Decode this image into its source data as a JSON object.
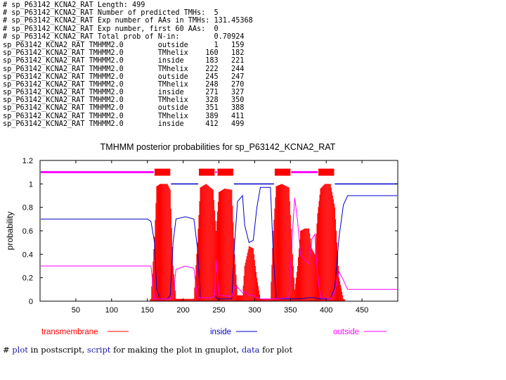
{
  "summary": {
    "header_lines": [
      "# sp_P63142_KCNA2_RAT Length: 499",
      "# sp_P63142_KCNA2_RAT Number of predicted TMHs:  5",
      "# sp_P63142_KCNA2_RAT Exp number of AAs in TMHs: 131.45368",
      "# sp_P63142_KCNA2_RAT Exp number, first 60 AAs:  0",
      "# sp_P63142_KCNA2_RAT Total prob of N-in:        0.70924"
    ],
    "rows": [
      {
        "seq": "sp_P63142_KCNA2_RAT",
        "method": "TMHMM2.0",
        "region": "outside",
        "start": "1",
        "end": "159"
      },
      {
        "seq": "sp_P63142_KCNA2_RAT",
        "method": "TMHMM2.0",
        "region": "TMhelix",
        "start": "160",
        "end": "182"
      },
      {
        "seq": "sp_P63142_KCNA2_RAT",
        "method": "TMHMM2.0",
        "region": "inside",
        "start": "183",
        "end": "221"
      },
      {
        "seq": "sp_P63142_KCNA2_RAT",
        "method": "TMHMM2.0",
        "region": "TMhelix",
        "start": "222",
        "end": "244"
      },
      {
        "seq": "sp_P63142_KCNA2_RAT",
        "method": "TMHMM2.0",
        "region": "outside",
        "start": "245",
        "end": "247"
      },
      {
        "seq": "sp_P63142_KCNA2_RAT",
        "method": "TMHMM2.0",
        "region": "TMhelix",
        "start": "248",
        "end": "270"
      },
      {
        "seq": "sp_P63142_KCNA2_RAT",
        "method": "TMHMM2.0",
        "region": "inside",
        "start": "271",
        "end": "327"
      },
      {
        "seq": "sp_P63142_KCNA2_RAT",
        "method": "TMHMM2.0",
        "region": "TMhelix",
        "start": "328",
        "end": "350"
      },
      {
        "seq": "sp_P63142_KCNA2_RAT",
        "method": "TMHMM2.0",
        "region": "outside",
        "start": "351",
        "end": "388"
      },
      {
        "seq": "sp_P63142_KCNA2_RAT",
        "method": "TMHMM2.0",
        "region": "TMhelix",
        "start": "389",
        "end": "411"
      },
      {
        "seq": "sp_P63142_KCNA2_RAT",
        "method": "TMHMM2.0",
        "region": "inside",
        "start": "412",
        "end": "499"
      }
    ]
  },
  "chart_data": {
    "type": "line",
    "title": "TMHMM posterior probabilities for sp_P63142_KCNA2_RAT",
    "xlabel": "",
    "ylabel": "probability",
    "xlim": [
      0,
      500
    ],
    "ylim": [
      0,
      1.2
    ],
    "xticks": [
      "50",
      "100",
      "150",
      "200",
      "250",
      "300",
      "350",
      "400",
      "450"
    ],
    "xtick_values": [
      50,
      100,
      150,
      200,
      250,
      300,
      350,
      400,
      450
    ],
    "yticks": [
      "0",
      "0.2",
      "0.4",
      "0.6",
      "0.8",
      "1",
      "1.2"
    ],
    "ytick_values": [
      0,
      0.2,
      0.4,
      0.6,
      0.8,
      1.0,
      1.2
    ],
    "topology_bar_y": 1.1,
    "topology": [
      {
        "region": "outside",
        "start": 1,
        "end": 159
      },
      {
        "region": "TMhelix",
        "start": 160,
        "end": 182
      },
      {
        "region": "inside",
        "start": 183,
        "end": 221
      },
      {
        "region": "TMhelix",
        "start": 222,
        "end": 244
      },
      {
        "region": "outside",
        "start": 245,
        "end": 247
      },
      {
        "region": "TMhelix",
        "start": 248,
        "end": 270
      },
      {
        "region": "inside",
        "start": 271,
        "end": 327
      },
      {
        "region": "TMhelix",
        "start": 328,
        "end": 350
      },
      {
        "region": "outside",
        "start": 351,
        "end": 388
      },
      {
        "region": "TMhelix",
        "start": 389,
        "end": 411
      },
      {
        "region": "inside",
        "start": 412,
        "end": 499
      }
    ],
    "series": [
      {
        "name": "transmembrane",
        "color": "#ff0000",
        "points": [
          [
            1,
            0
          ],
          [
            150,
            0
          ],
          [
            155,
            0.02
          ],
          [
            160,
            0.55
          ],
          [
            163,
            0.98
          ],
          [
            168,
            1.0
          ],
          [
            178,
            1.0
          ],
          [
            182,
            0.95
          ],
          [
            186,
            0.3
          ],
          [
            190,
            0.02
          ],
          [
            215,
            0.02
          ],
          [
            220,
            0.5
          ],
          [
            224,
            0.97
          ],
          [
            232,
            1.0
          ],
          [
            242,
            0.95
          ],
          [
            246,
            0.6
          ],
          [
            250,
            0.93
          ],
          [
            258,
            0.96
          ],
          [
            268,
            0.95
          ],
          [
            272,
            0.4
          ],
          [
            276,
            0.05
          ],
          [
            283,
            0.05
          ],
          [
            286,
            0.3
          ],
          [
            292,
            0.47
          ],
          [
            298,
            0.45
          ],
          [
            303,
            0.2
          ],
          [
            308,
            0.02
          ],
          [
            322,
            0.02
          ],
          [
            326,
            0.6
          ],
          [
            330,
            0.98
          ],
          [
            338,
            1.0
          ],
          [
            348,
            0.97
          ],
          [
            352,
            0.5
          ],
          [
            356,
            0.1
          ],
          [
            360,
            0.3
          ],
          [
            364,
            0.6
          ],
          [
            370,
            0.62
          ],
          [
            376,
            0.62
          ],
          [
            380,
            0.45
          ],
          [
            384,
            0.4
          ],
          [
            388,
            0.75
          ],
          [
            392,
            0.96
          ],
          [
            398,
            1.0
          ],
          [
            406,
            1.0
          ],
          [
            412,
            0.8
          ],
          [
            418,
            0.2
          ],
          [
            424,
            0.02
          ],
          [
            430,
            0
          ],
          [
            499,
            0
          ]
        ]
      },
      {
        "name": "inside",
        "color": "#0000cc",
        "points": [
          [
            1,
            0.7
          ],
          [
            150,
            0.7
          ],
          [
            155,
            0.68
          ],
          [
            160,
            0.5
          ],
          [
            163,
            0.1
          ],
          [
            168,
            0.02
          ],
          [
            178,
            0.02
          ],
          [
            182,
            0.05
          ],
          [
            186,
            0.5
          ],
          [
            190,
            0.7
          ],
          [
            203,
            0.72
          ],
          [
            215,
            0.7
          ],
          [
            220,
            0.45
          ],
          [
            224,
            0.03
          ],
          [
            240,
            0.03
          ],
          [
            244,
            0.05
          ],
          [
            248,
            0.02
          ],
          [
            268,
            0.02
          ],
          [
            272,
            0.5
          ],
          [
            276,
            0.85
          ],
          [
            283,
            0.9
          ],
          [
            286,
            0.65
          ],
          [
            292,
            0.5
          ],
          [
            298,
            0.52
          ],
          [
            303,
            0.8
          ],
          [
            308,
            0.97
          ],
          [
            322,
            0.97
          ],
          [
            326,
            0.4
          ],
          [
            330,
            0.02
          ],
          [
            348,
            0.02
          ],
          [
            352,
            0.02
          ],
          [
            356,
            0.02
          ],
          [
            364,
            0.02
          ],
          [
            376,
            0.03
          ],
          [
            384,
            0.03
          ],
          [
            388,
            0.02
          ],
          [
            406,
            0.02
          ],
          [
            412,
            0.12
          ],
          [
            418,
            0.55
          ],
          [
            424,
            0.82
          ],
          [
            430,
            0.9
          ],
          [
            499,
            0.9
          ]
        ]
      },
      {
        "name": "outside",
        "color": "#ff00ff",
        "points": [
          [
            1,
            0.3
          ],
          [
            150,
            0.3
          ],
          [
            155,
            0.3
          ],
          [
            160,
            0.02
          ],
          [
            178,
            0.02
          ],
          [
            182,
            0.02
          ],
          [
            186,
            0.04
          ],
          [
            190,
            0.27
          ],
          [
            203,
            0.3
          ],
          [
            215,
            0.28
          ],
          [
            220,
            0.03
          ],
          [
            240,
            0.03
          ],
          [
            244,
            0.05
          ],
          [
            246,
            0.35
          ],
          [
            250,
            0.05
          ],
          [
            268,
            0.04
          ],
          [
            272,
            0.12
          ],
          [
            276,
            0.12
          ],
          [
            283,
            0.07
          ],
          [
            286,
            0.08
          ],
          [
            292,
            0.05
          ],
          [
            298,
            0.05
          ],
          [
            303,
            0.03
          ],
          [
            308,
            0.02
          ],
          [
            322,
            0.02
          ],
          [
            326,
            0.02
          ],
          [
            330,
            0.02
          ],
          [
            348,
            0.03
          ],
          [
            352,
            0.5
          ],
          [
            356,
            0.88
          ],
          [
            360,
            0.68
          ],
          [
            364,
            0.4
          ],
          [
            370,
            0.35
          ],
          [
            376,
            0.32
          ],
          [
            380,
            0.53
          ],
          [
            384,
            0.57
          ],
          [
            388,
            0.22
          ],
          [
            392,
            0.03
          ],
          [
            406,
            0.02
          ],
          [
            412,
            0.08
          ],
          [
            418,
            0.25
          ],
          [
            424,
            0.18
          ],
          [
            430,
            0.1
          ],
          [
            499,
            0.1
          ]
        ]
      }
    ]
  },
  "footer": {
    "hash": "#",
    "plot_link": "plot",
    "text1": "in postscript,",
    "script_link": "script",
    "text2": "for making the plot in gnuplot,",
    "data_link": "data",
    "text3": "for plot"
  }
}
